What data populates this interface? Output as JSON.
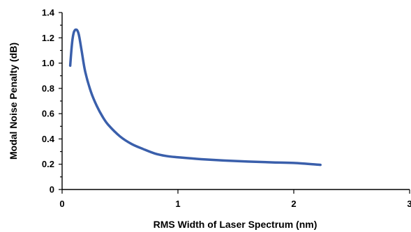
{
  "chart_data": {
    "type": "line",
    "title": "",
    "xlabel": "RMS Width of Laser Spectrum (nm)",
    "ylabel": "Modal Noise Penalty (dB)",
    "xlim": [
      0,
      3
    ],
    "ylim": [
      0,
      1.4
    ],
    "x_ticks": [
      "0",
      "1",
      "2",
      "3"
    ],
    "y_ticks": [
      "0",
      "0.2",
      "0.4",
      "0.6",
      "0.8",
      "1.0",
      "1.2",
      "1.4"
    ],
    "grid": false,
    "legend": "none",
    "series": [
      {
        "color": "#3a5fab",
        "x": [
          0.07,
          0.08,
          0.09,
          0.1,
          0.11,
          0.12,
          0.13,
          0.14,
          0.15,
          0.17,
          0.2,
          0.25,
          0.3,
          0.35,
          0.4,
          0.5,
          0.6,
          0.7,
          0.8,
          0.9,
          1.0,
          1.2,
          1.5,
          1.8,
          2.0,
          2.23
        ],
        "y": [
          0.98,
          1.1,
          1.19,
          1.24,
          1.26,
          1.265,
          1.26,
          1.24,
          1.2,
          1.09,
          0.93,
          0.77,
          0.66,
          0.575,
          0.51,
          0.42,
          0.36,
          0.32,
          0.285,
          0.265,
          0.255,
          0.24,
          0.225,
          0.215,
          0.21,
          0.195
        ]
      }
    ]
  }
}
